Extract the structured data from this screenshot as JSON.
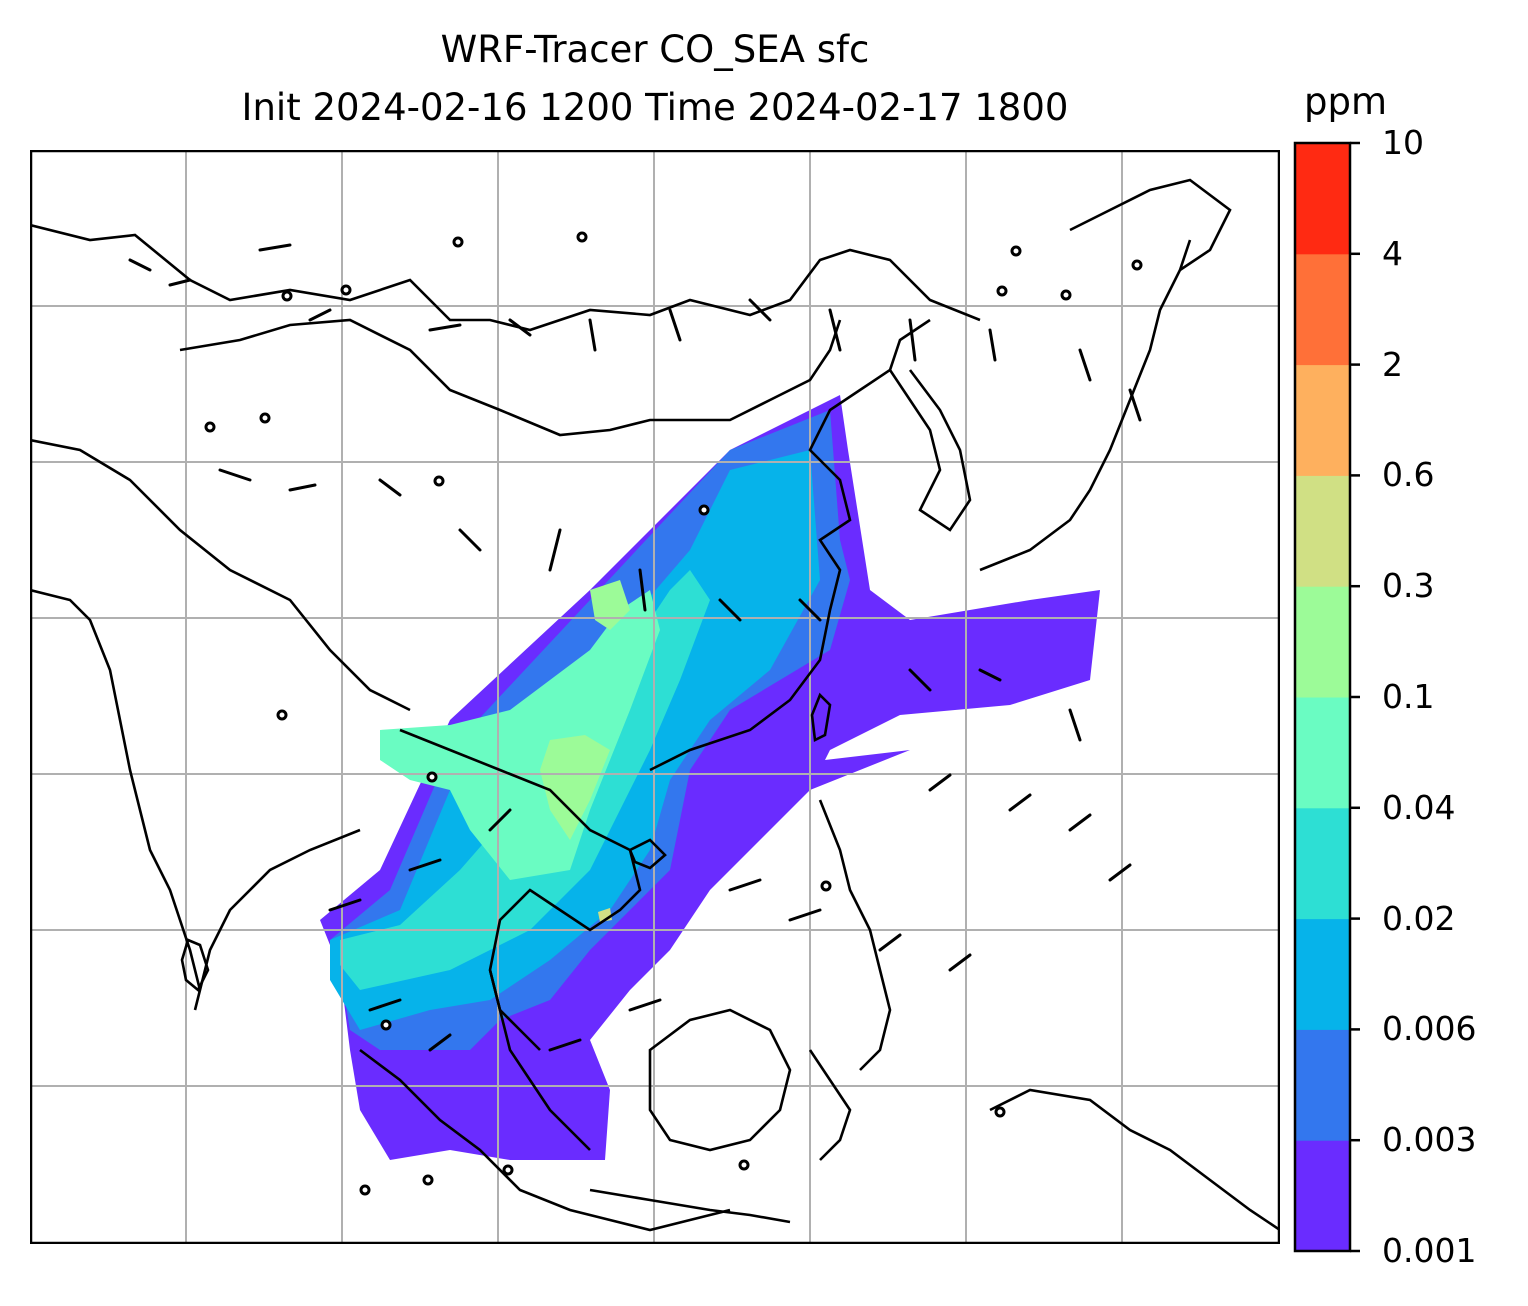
{
  "title": {
    "line1": "WRF-Tracer CO_SEA sfc",
    "line2": "Init 2024-02-16 1200 Time 2024-02-17 1800"
  },
  "colorbar": {
    "unit": "ppm",
    "levels": [
      "0.001",
      "0.003",
      "0.006",
      "0.02",
      "0.04",
      "0.1",
      "0.3",
      "0.6",
      "2",
      "4",
      "10"
    ],
    "colors": [
      "#6a2cff",
      "#3377ee",
      "#06b3ea",
      "#2ddfd4",
      "#6afcc2",
      "#9cfb98",
      "#d0e084",
      "#feb05e",
      "#ff7038",
      "#ff2a12"
    ]
  },
  "map": {
    "gridlines": true,
    "barb_color": "#000000",
    "coastline_color": "#000000"
  }
}
